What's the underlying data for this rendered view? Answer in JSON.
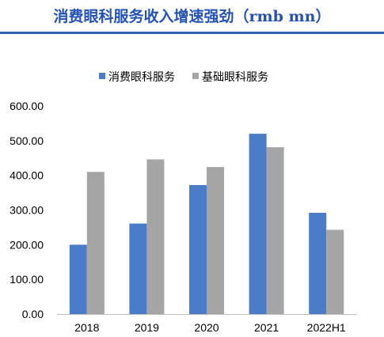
{
  "chart_data": {
    "type": "bar",
    "title": "消费眼科服务收入增速强劲（rmb mn）",
    "categories": [
      "2018",
      "2019",
      "2020",
      "2021",
      "2022H1"
    ],
    "series": [
      {
        "name": "消费眼科服务",
        "color": "#4a7cc7",
        "values": [
          200,
          261,
          372,
          520,
          292
        ]
      },
      {
        "name": "基础眼科服务",
        "color": "#a5a5a5",
        "values": [
          410,
          446,
          424,
          481,
          243
        ]
      }
    ],
    "ylim": [
      0,
      600
    ],
    "yticks": [
      "0.00",
      "100.00",
      "200.00",
      "300.00",
      "400.00",
      "500.00",
      "600.00"
    ],
    "xlabel": "",
    "ylabel": "",
    "legend": "top-center",
    "grid": false
  }
}
